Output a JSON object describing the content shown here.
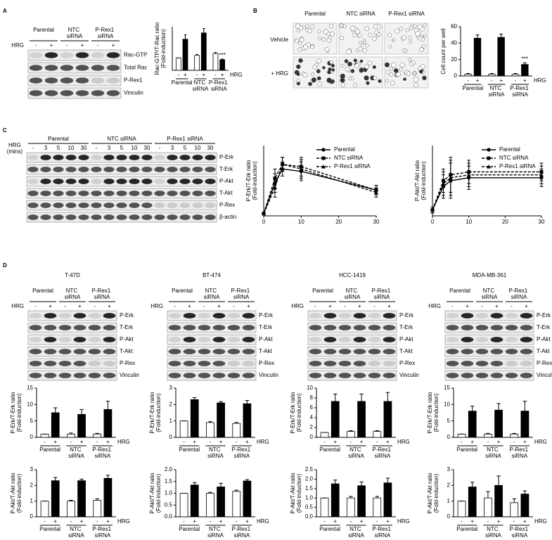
{
  "panel_labels": [
    "A",
    "B",
    "C",
    "D"
  ],
  "blots": [
    {
      "groups": [
        "Parental",
        "NTC siRNA",
        "P-Rex1 siRNA"
      ],
      "lane_title": "HRG",
      "lanes": [
        "-",
        "+",
        "-",
        "+",
        "-",
        "+"
      ],
      "rows": [
        "Rac-GTP",
        "Total Rac",
        "P-Rex1",
        "Vinculin"
      ]
    },
    {
      "groups": [
        "Parental",
        "NTC siRNA",
        "P-Rex1 siRNA"
      ],
      "lane_title": "HRG (mins)",
      "lanes": [
        "-",
        "3",
        "5",
        "10",
        "30",
        "-",
        "3",
        "5",
        "10",
        "30",
        "-",
        "3",
        "5",
        "10",
        "30"
      ],
      "rows": [
        "P-Erk",
        "T-Erk",
        "P-Akt",
        "T-Akt",
        "P-Rex",
        "β-actin"
      ]
    },
    {
      "title": "T-47D",
      "groups": [
        "Parental",
        "NTC siRNA",
        "P-Rex1 siRNA"
      ],
      "lane_title": "HRG",
      "lanes": [
        "-",
        "+",
        "-",
        "+",
        "-",
        "+"
      ],
      "rows": [
        "P-Erk",
        "T-Erk",
        "P-Akt",
        "T-Akt",
        "P-Rex",
        "Vinculin"
      ]
    },
    {
      "title": "BT-474",
      "groups": [
        "Parental",
        "NTC siRNA",
        "P-Rex1 siRNA"
      ],
      "lane_title": "HRG",
      "lanes": [
        "-",
        "+",
        "-",
        "+",
        "-",
        "+"
      ],
      "rows": [
        "P-Erk",
        "T-Erk",
        "P-Akt",
        "T-Akt",
        "P-Rex",
        "Vinculin"
      ]
    },
    {
      "title": "HCC-1419",
      "groups": [
        "Parental",
        "NTC siRNA",
        "P-Rex1 siRNA"
      ],
      "lane_title": "HRG",
      "lanes": [
        "-",
        "+",
        "-",
        "+",
        "-",
        "+"
      ],
      "rows": [
        "P-Erk",
        "T-Erk",
        "P-Akt",
        "T-Akt",
        "P-Rex",
        "Vinculin"
      ]
    },
    {
      "title": "MDA-MB-361",
      "groups": [
        "Parental",
        "NTC siRNA",
        "P-Rex1 siRNA"
      ],
      "lane_title": "HRG",
      "lanes": [
        "-",
        "+",
        "-",
        "+",
        "-",
        "+"
      ],
      "rows": [
        "P-Erk",
        "T-Erk",
        "P-Akt",
        "T-Akt",
        "P-Rex",
        "Vinculin"
      ]
    }
  ],
  "microscopy": {
    "columns": [
      "Parental",
      "NTC siRNA",
      "P-Rex1 siRNA"
    ],
    "rows": [
      "Vehicle",
      "+ HRG"
    ]
  },
  "chart_data": [
    {
      "type": "bar",
      "ylabel": [
        "Rac-GTP/T-Rac ratio",
        "(Fold-induction)"
      ],
      "categories": [
        "-",
        "+",
        "-",
        "+",
        "-",
        "+"
      ],
      "groups": [
        "Parental",
        "NTC siRNA",
        "P-Rex1 siRNA"
      ],
      "x_label": "HRG",
      "values": [
        1,
        2.5,
        1.2,
        3,
        1.35,
        0.85
      ],
      "errors": [
        0,
        0.35,
        0.08,
        0.35,
        0.08,
        0.05
      ],
      "colors": [
        "#ffffff",
        "#000000",
        "#ffffff",
        "#000000",
        "#ffffff",
        "#000000"
      ],
      "value_annotations": [
        null,
        null,
        null,
        null,
        null,
        "***"
      ],
      "ylim": [
        0,
        3.5
      ]
    },
    {
      "type": "bar",
      "ylabel": [
        "Cell count per well"
      ],
      "categories": [
        "-",
        "+",
        "-",
        "+",
        "-",
        "+"
      ],
      "groups": [
        "Parental",
        "NTC siRNA",
        "P-Rex1 siRNA"
      ],
      "x_label": "HRG",
      "values": [
        2,
        46,
        2,
        47,
        2,
        14
      ],
      "errors": [
        1,
        4,
        1,
        4,
        1,
        2
      ],
      "colors": [
        "#ffffff",
        "#000000",
        "#ffffff",
        "#000000",
        "#ffffff",
        "#000000"
      ],
      "value_annotations": [
        null,
        null,
        null,
        null,
        null,
        "***"
      ],
      "ylim": [
        0,
        60
      ],
      "yticks": [
        0,
        20,
        40,
        60
      ]
    },
    {
      "type": "line",
      "ylabel": [
        "P-Erk/T-Erk ratio",
        "(Fold-induction)"
      ],
      "x": [
        0,
        3,
        5,
        10,
        30
      ],
      "xlim": [
        0,
        30
      ],
      "xticks": [
        0,
        10,
        20,
        30
      ],
      "ylim": [
        0,
        30
      ],
      "legend": "upper right",
      "series": [
        {
          "name": "Parental",
          "color": "#000000",
          "dash": "solid",
          "marker": "circle",
          "values": [
            1,
            14,
            20,
            19,
            11
          ],
          "errors": [
            0.5,
            4,
            3,
            4,
            2
          ]
        },
        {
          "name": "NTC siRNA",
          "color": "#000000",
          "dash": "dashed",
          "marker": "square",
          "values": [
            1,
            16,
            22,
            21,
            11
          ],
          "errors": [
            0.5,
            4,
            3,
            4,
            2
          ]
        },
        {
          "name": "P-Rex1 siRNA",
          "color": "#000000",
          "dash": "dashed",
          "marker": "triangle",
          "values": [
            1,
            12,
            22,
            20,
            10
          ],
          "errors": [
            0.5,
            4,
            3,
            4,
            2
          ]
        }
      ]
    },
    {
      "type": "line",
      "ylabel": [
        "P-Akt/T-Akt ratio",
        "(Fold-induction)"
      ],
      "x": [
        0,
        3,
        5,
        10,
        30
      ],
      "xlim": [
        0,
        30
      ],
      "xticks": [
        0,
        10,
        20,
        30
      ],
      "ylim": [
        0,
        12
      ],
      "legend": "upper right",
      "series": [
        {
          "name": "Parental",
          "color": "#000000",
          "dash": "solid",
          "marker": "circle",
          "values": [
            1,
            5,
            6,
            6.5,
            6.5
          ],
          "errors": [
            0.5,
            2,
            3,
            2,
            1.5
          ]
        },
        {
          "name": "NTC siRNA",
          "color": "#000000",
          "dash": "dashed",
          "marker": "square",
          "values": [
            1,
            6,
            7,
            7.5,
            7.5
          ],
          "errors": [
            0.5,
            2,
            3,
            2,
            1.5
          ]
        },
        {
          "name": "P-Rex1 siRNA",
          "color": "#000000",
          "dash": "dashed",
          "marker": "triangle",
          "values": [
            1,
            5.5,
            6.5,
            7,
            7
          ],
          "errors": [
            0.5,
            2,
            3,
            2,
            1.5
          ]
        }
      ]
    },
    {
      "type": "bar",
      "ylabel": [
        "P-Erk/T-Erk ratio",
        "(Fold-induction)"
      ],
      "categories": [
        "-",
        "+",
        "-",
        "+",
        "-",
        "+"
      ],
      "groups": [
        "Parental",
        "NTC siRNA",
        "P-Rex1 siRNA"
      ],
      "x_label": "HRG",
      "values": [
        1,
        7.5,
        1,
        7,
        1,
        8.5
      ],
      "errors": [
        0,
        1.5,
        0.3,
        1.5,
        0.2,
        2.5
      ],
      "colors": [
        "#ffffff",
        "#000000",
        "#ffffff",
        "#000000",
        "#ffffff",
        "#000000"
      ],
      "ylim": [
        0,
        15
      ],
      "yticks": [
        0,
        5,
        10,
        15
      ]
    },
    {
      "type": "bar",
      "ylabel": [
        "P-Akt/T-Akt ratio",
        "(Fold-induction)"
      ],
      "categories": [
        "-",
        "+",
        "-",
        "+",
        "-",
        "+"
      ],
      "groups": [
        "Parental",
        "NTC siRNA",
        "P-Rex1 siRNA"
      ],
      "x_label": "HRG",
      "values": [
        1,
        2.3,
        1,
        2.3,
        1.05,
        2.45
      ],
      "errors": [
        0,
        0.2,
        0.05,
        0.1,
        0.1,
        0.2
      ],
      "colors": [
        "#ffffff",
        "#000000",
        "#ffffff",
        "#000000",
        "#ffffff",
        "#000000"
      ],
      "ylim": [
        0,
        3
      ],
      "yticks": [
        0,
        1,
        2,
        3
      ]
    },
    {
      "type": "bar",
      "ylabel": [
        "P-Erk/T-Erk ratio",
        "(Fold-induction)"
      ],
      "categories": [
        "-",
        "+",
        "-",
        "+",
        "-",
        "+"
      ],
      "groups": [
        "Parental",
        "NTC siRNA",
        "P-Rex1 siRNA"
      ],
      "x_label": "HRG",
      "values": [
        1,
        2.3,
        0.9,
        2.1,
        0.85,
        2.05
      ],
      "errors": [
        0,
        0.12,
        0.06,
        0.08,
        0.06,
        0.2
      ],
      "colors": [
        "#ffffff",
        "#000000",
        "#ffffff",
        "#000000",
        "#ffffff",
        "#000000"
      ],
      "ylim": [
        0,
        3
      ],
      "yticks": [
        0,
        1,
        2,
        3
      ]
    },
    {
      "type": "bar",
      "ylabel": [
        "P-Akt/T-Akt ratio",
        "(Fold-induction)"
      ],
      "categories": [
        "-",
        "+",
        "-",
        "+",
        "-",
        "+"
      ],
      "groups": [
        "Parental",
        "NTC siRNA",
        "P-Rex1 siRNA"
      ],
      "x_label": "HRG",
      "values": [
        1,
        1.35,
        1,
        1.27,
        1.08,
        1.52
      ],
      "errors": [
        0,
        0.1,
        0.04,
        0.15,
        0.05,
        0.06
      ],
      "colors": [
        "#ffffff",
        "#000000",
        "#ffffff",
        "#000000",
        "#ffffff",
        "#000000"
      ],
      "ylim": [
        0,
        2
      ],
      "yticks": [
        {
          "value": 0,
          "label": "0.0"
        },
        0.5,
        {
          "value": 1,
          "label": "1.0"
        },
        1.5,
        {
          "value": 2,
          "label": "2.0"
        }
      ]
    },
    {
      "type": "bar",
      "ylabel": [
        "P-Erk/T-Erk ratio",
        "(Fold-induction)"
      ],
      "categories": [
        "-",
        "+",
        "-",
        "+",
        "-",
        "+"
      ],
      "groups": [
        "Parental",
        "NTC siRNA",
        "P-Rex1 siRNA"
      ],
      "x_label": "HRG",
      "values": [
        1,
        7.3,
        1.2,
        7.3,
        1.2,
        7.3
      ],
      "errors": [
        0,
        1.5,
        0.15,
        1.5,
        0.15,
        1.8
      ],
      "colors": [
        "#ffffff",
        "#000000",
        "#ffffff",
        "#000000",
        "#ffffff",
        "#000000"
      ],
      "ylim": [
        0,
        10
      ],
      "yticks": [
        0,
        2,
        4,
        6,
        8,
        10
      ]
    },
    {
      "type": "bar",
      "ylabel": [
        "P-Akt/T-Akt ratio",
        "(Fold-induction)"
      ],
      "categories": [
        "-",
        "+",
        "-",
        "+",
        "-",
        "+"
      ],
      "groups": [
        "Parental",
        "NTC siRNA",
        "P-Rex1 siRNA"
      ],
      "x_label": "HRG",
      "values": [
        1,
        1.75,
        1,
        1.65,
        1,
        1.8
      ],
      "errors": [
        0,
        0.2,
        0.08,
        0.2,
        0.08,
        0.25
      ],
      "colors": [
        "#ffffff",
        "#000000",
        "#ffffff",
        "#000000",
        "#ffffff",
        "#000000"
      ],
      "ylim": [
        0,
        2.5
      ],
      "yticks": [
        {
          "value": 0,
          "label": "0.0"
        },
        0.5,
        {
          "value": 1,
          "label": "1.0"
        },
        1.5,
        {
          "value": 2,
          "label": "2.0"
        },
        2.5
      ]
    },
    {
      "type": "bar",
      "ylabel": [
        "P-Erk/T-Erk ratio",
        "(Fold-induction)"
      ],
      "categories": [
        "-",
        "+",
        "-",
        "+",
        "-",
        "+"
      ],
      "groups": [
        "Parental",
        "NTC siRNA",
        "P-Rex1 siRNA"
      ],
      "x_label": "HRG",
      "values": [
        1,
        8,
        1,
        8.3,
        1,
        8
      ],
      "errors": [
        0,
        1.5,
        0.2,
        2,
        0.2,
        3
      ],
      "colors": [
        "#ffffff",
        "#000000",
        "#ffffff",
        "#000000",
        "#ffffff",
        "#000000"
      ],
      "ylim": [
        0,
        15
      ],
      "yticks": [
        0,
        5,
        10,
        15
      ]
    },
    {
      "type": "bar",
      "ylabel": [
        "P-Akt/T-Akt ratio",
        "(Fold-induction)"
      ],
      "categories": [
        "-",
        "+",
        "-",
        "+",
        "-",
        "+"
      ],
      "groups": [
        "Parental",
        "NTC siRNA",
        "P-Rex1 siRNA"
      ],
      "x_label": "HRG",
      "values": [
        1,
        1.9,
        1.2,
        2,
        0.9,
        1.45
      ],
      "errors": [
        0,
        0.3,
        0.4,
        0.6,
        0.25,
        0.2
      ],
      "colors": [
        "#ffffff",
        "#000000",
        "#ffffff",
        "#000000",
        "#ffffff",
        "#000000"
      ],
      "ylim": [
        0,
        3
      ],
      "yticks": [
        0,
        1,
        2,
        3
      ]
    }
  ]
}
